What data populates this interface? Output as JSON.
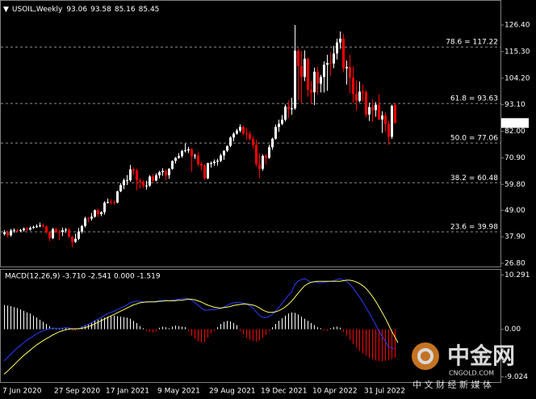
{
  "chart_data": [
    {
      "type": "candlestick",
      "symbol": "USOIL,Weekly",
      "categories": [
        "7 Jun 2020",
        null,
        null,
        null,
        null,
        null,
        null,
        null,
        null,
        null,
        null,
        null,
        null,
        null,
        null,
        null,
        "27 Sep 2020",
        null,
        null,
        null,
        null,
        null,
        null,
        null,
        null,
        null,
        null,
        null,
        null,
        null,
        null,
        null,
        "17 Jan 2021",
        null,
        null,
        null,
        null,
        null,
        null,
        null,
        null,
        null,
        null,
        null,
        null,
        null,
        null,
        null,
        "9 May 2021",
        null,
        null,
        null,
        null,
        null,
        null,
        null,
        null,
        null,
        null,
        null,
        null,
        null,
        null,
        null,
        "29 Aug 2021",
        null,
        null,
        null,
        null,
        null,
        null,
        null,
        null,
        null,
        null,
        null,
        null,
        null,
        null,
        null,
        "19 Dec 2021",
        null,
        null,
        null,
        null,
        null,
        null,
        null,
        null,
        null,
        null,
        null,
        null,
        null,
        null,
        null,
        "10 Apr 2022",
        null,
        null,
        null,
        null,
        null,
        null,
        null,
        null,
        null,
        null,
        null,
        null,
        null,
        null,
        null,
        "31 Jul 2022",
        null,
        null,
        null,
        null,
        null,
        null,
        null,
        null,
        null
      ],
      "open": [
        39.0,
        39.8,
        38.5,
        40.5,
        40.6,
        40.3,
        40.6,
        41.3,
        40.9,
        41.6,
        42.0,
        42.3,
        42.6,
        42.2,
        39.8,
        37.3,
        41.1,
        40.0,
        39.9,
        40.6,
        40.9,
        37.9,
        35.8,
        37.1,
        40.1,
        42.4,
        45.6,
        45.5,
        46.3,
        49.0,
        47.4,
        48.2,
        52.2,
        52.4,
        52.3,
        52.2,
        56.9,
        59.5,
        61.5,
        61.5,
        66.1,
        65.6,
        61.4,
        60.9,
        59.3,
        59.3,
        63.1,
        61.4,
        63.6,
        64.9,
        65.4,
        63.6,
        66.3,
        69.6,
        70.9,
        71.6,
        73.7,
        74.0,
        74.5,
        71.6,
        71.9,
        68.3,
        67.7,
        62.3,
        68.7,
        68.7,
        69.3,
        69.7,
        71.9,
        73.9,
        75.9,
        79.4,
        81.0,
        82.3,
        83.8,
        81.0,
        80.9,
        78.8,
        76.3,
        68.2,
        66.3,
        71.7,
        70.9,
        75.3,
        78.9,
        83.8,
        85.1,
        86.8,
        92.3,
        91.2,
        91.6,
        115.7,
        109.3,
        104.7,
        112.3,
        99.3,
        98.3,
        106.9,
        101.9,
        104.7,
        109.8,
        110.5,
        110.3,
        114.5,
        119.1,
        120.7,
        108.3,
        108.9,
        104.4,
        97.6,
        94.7,
        98.6,
        98.4,
        89.0,
        92.1,
        90.8,
        93.1,
        86.9,
        88.6,
        85.1,
        79.7,
        93.06
      ],
      "high": [
        40.7,
        40.4,
        41.2,
        41.4,
        41.0,
        41.2,
        41.8,
        41.9,
        42.2,
        42.6,
        43.1,
        43.8,
        43.4,
        42.6,
        40.2,
        41.6,
        41.7,
        40.8,
        41.7,
        41.6,
        41.5,
        38.2,
        39.2,
        41.6,
        42.9,
        46.3,
        46.2,
        47.8,
        49.3,
        49.6,
        48.6,
        52.7,
        53.9,
        53.6,
        53.2,
        57.1,
        60.3,
        62.3,
        63.7,
        67.9,
        66.9,
        66.4,
        62.3,
        61.6,
        61.3,
        63.6,
        64.1,
        64.4,
        65.5,
        66.5,
        66.1,
        66.6,
        69.8,
        71.2,
        72.9,
        74.3,
        76.9,
        75.5,
        74.9,
        72.6,
        73.3,
        69.2,
        68.2,
        68.9,
        69.4,
        70.2,
        70.5,
        72.6,
        74.0,
        76.0,
        79.9,
        81.6,
        83.0,
        84.9,
        84.4,
        83.4,
        82.1,
        79.8,
        78.4,
        72.7,
        72.3,
        72.6,
        76.4,
        79.3,
        84.8,
        86.8,
        88.8,
        93.2,
        94.9,
        96.0,
        126.4,
        116.6,
        115.5,
        115.8,
        112.8,
        103.0,
        108.6,
        109.0,
        105.6,
        111.2,
        114.0,
        115.1,
        117.7,
        120.7,
        123.7,
        122.7,
        111.6,
        114.0,
        109.2,
        103.2,
        102.8,
        101.5,
        99.0,
        94.0,
        95.4,
        94.2,
        97.5,
        90.4,
        89.8,
        86.3,
        93.1,
        93.58
      ],
      "low": [
        38.4,
        37.6,
        38.0,
        39.5,
        39.6,
        39.8,
        40.1,
        40.3,
        40.5,
        41.2,
        41.6,
        41.9,
        41.8,
        39.3,
        36.1,
        36.9,
        39.4,
        36.6,
        38.2,
        39.6,
        37.6,
        33.6,
        35.3,
        36.5,
        39.3,
        41.8,
        43.9,
        44.6,
        45.9,
        46.2,
        46.5,
        47.2,
        51.8,
        51.4,
        51.3,
        51.9,
        56.6,
        57.8,
        59.5,
        60.9,
        63.8,
        57.3,
        58.1,
        58.3,
        57.6,
        58.8,
        60.8,
        61.1,
        62.3,
        63.4,
        61.6,
        62.1,
        65.9,
        68.5,
        70.5,
        70.9,
        73.1,
        72.9,
        65.1,
        70.4,
        67.3,
        65.7,
        61.7,
        62.0,
        66.8,
        67.6,
        67.7,
        69.1,
        70.1,
        73.3,
        75.4,
        77.8,
        80.6,
        81.6,
        80.4,
        78.3,
        78.2,
        74.8,
        67.4,
        62.4,
        65.5,
        68.1,
        70.5,
        74.3,
        78.5,
        81.8,
        84.6,
        86.1,
        87.5,
        88.9,
        91.0,
        95.0,
        93.5,
        103.0,
        96.5,
        93.3,
        92.9,
        97.4,
        98.2,
        98.2,
        98.9,
        105.1,
        108.4,
        112.0,
        116.5,
        106.7,
        101.5,
        97.9,
        93.8,
        90.6,
        94.1,
        94.5,
        87.6,
        86.3,
        86.0,
        88.1,
        86.8,
        81.3,
        82.0,
        76.3,
        78.8,
        85.16
      ],
      "close": [
        39.8,
        38.5,
        40.5,
        40.6,
        40.3,
        40.6,
        41.3,
        40.9,
        41.6,
        42.0,
        42.3,
        42.6,
        42.2,
        39.8,
        37.3,
        41.1,
        40.0,
        39.9,
        40.6,
        40.9,
        37.9,
        35.8,
        37.1,
        40.1,
        42.4,
        45.6,
        45.5,
        46.3,
        49.0,
        47.4,
        48.2,
        52.2,
        52.4,
        52.3,
        52.2,
        56.9,
        59.5,
        61.5,
        61.5,
        66.1,
        65.6,
        61.4,
        60.9,
        59.3,
        59.3,
        63.1,
        61.4,
        63.6,
        64.9,
        65.4,
        63.6,
        66.3,
        69.6,
        70.9,
        71.6,
        73.7,
        74.0,
        74.5,
        71.6,
        71.9,
        68.3,
        67.7,
        62.3,
        68.7,
        68.7,
        69.3,
        69.7,
        71.9,
        73.9,
        75.9,
        79.4,
        81.0,
        82.3,
        83.8,
        81.0,
        80.9,
        78.8,
        76.3,
        68.2,
        66.3,
        71.7,
        70.9,
        75.3,
        78.9,
        83.8,
        85.1,
        86.8,
        92.3,
        91.2,
        91.6,
        115.7,
        109.3,
        104.7,
        112.3,
        99.3,
        98.3,
        106.9,
        101.9,
        104.7,
        109.8,
        110.5,
        110.3,
        114.5,
        119.1,
        120.7,
        108.3,
        108.9,
        104.4,
        97.6,
        94.7,
        98.6,
        98.4,
        89.0,
        92.1,
        90.8,
        93.1,
        86.9,
        88.6,
        85.1,
        79.7,
        92.6,
        85.45
      ],
      "bull_color": "#ffffff",
      "bear_color": "#ff0000",
      "ylim": [
        25.46,
        136.19
      ],
      "yticks": [
        {
          "value": 126.4,
          "label": "126.40"
        },
        {
          "value": 115.3,
          "label": "115.30"
        },
        {
          "value": 104.2,
          "label": "104.20"
        },
        {
          "value": 93.1,
          "label": "93.10"
        },
        {
          "value": 82,
          "label": "82.00"
        },
        {
          "value": 70.9,
          "label": "70.90"
        },
        {
          "value": 59.8,
          "label": "59.80"
        },
        {
          "value": 49,
          "label": "49.00"
        },
        {
          "value": 37.9,
          "label": "37.90"
        },
        {
          "value": 26.8,
          "label": "26.80"
        }
      ],
      "fib_color": "#8c8c8c",
      "fib_levels": [
        {
          "value": 117.22,
          "label": "78.6 = 117.22"
        },
        {
          "value": 93.63,
          "label": "61.8 = 93.63"
        },
        {
          "value": 77.06,
          "label": "50.0 = 77.06"
        },
        {
          "value": 60.48,
          "label": "38.2 = 60.48"
        },
        {
          "value": 39.98,
          "label": "23.6 = 39.98"
        }
      ]
    },
    {
      "type": "macd",
      "title": "MACD(12,26,9) -3.710 -2.541 0.000 -1.519",
      "ylim": [
        -10.0,
        11.28
      ],
      "yticks": [
        10.291,
        {
          "value": 0,
          "label": "0.00"
        },
        -9.024
      ],
      "histogram": {
        "pos_color": "#ffffff",
        "neg_color": "#ff0000",
        "values": [
          4.6,
          4.5,
          4.4,
          4.2,
          4.0,
          3.8,
          3.5,
          3.2,
          3.0,
          2.6,
          2.2,
          1.8,
          1.4,
          1.0,
          0.6,
          0.3,
          0.1,
          0.1,
          0.2,
          0.3,
          0.2,
          -0.2,
          -0.3,
          0.2,
          0.5,
          0.8,
          1.0,
          1.3,
          1.6,
          1.8,
          2.0,
          2.2,
          2.4,
          2.5,
          2.6,
          2.5,
          2.4,
          2.3,
          2.2,
          2.0,
          1.6,
          1.2,
          0.6,
          0.2,
          -0.3,
          -0.5,
          -0.6,
          -0.4,
          0.3,
          0.5,
          0.4,
          0.2,
          0.5,
          0.7,
          0.6,
          0.5,
          0.4,
          -0.4,
          -1.2,
          -1.8,
          -2.3,
          -2.5,
          -2.4,
          -1.6,
          -0.8,
          -0.3,
          0.4,
          1.0,
          1.4,
          1.6,
          1.5,
          1.2,
          0.8,
          -0.4,
          -1.0,
          -1.6,
          -2.0,
          -2.2,
          -2.3,
          -2.1,
          -1.6,
          -1.0,
          -0.4,
          0.4,
          1.0,
          1.6,
          2.1,
          2.6,
          3.0,
          3.2,
          3.1,
          2.8,
          2.4,
          2.0,
          1.6,
          1.2,
          0.8,
          0.4,
          0.2,
          -0.2,
          -0.3,
          0.2,
          0.4,
          0.5,
          0.3,
          -0.5,
          -1.2,
          -2.0,
          -2.8,
          -3.5,
          -4.1,
          -4.6,
          -5.0,
          -5.4,
          -5.7,
          -5.9,
          -6.0,
          -6.1,
          -6.0,
          -5.8,
          -5.6,
          -5.4
        ]
      },
      "series": [
        {
          "color": "#2a3cff",
          "values": [
            -6.0,
            -5.4,
            -4.8,
            -4.2,
            -3.6,
            -3.1,
            -2.6,
            -2.1,
            -1.7,
            -1.3,
            -0.9,
            -0.6,
            -0.3,
            -0.1,
            0.1,
            0.2,
            0.2,
            0.2,
            0.2,
            0.3,
            0.3,
            0.1,
            0.0,
            0.1,
            0.3,
            0.6,
            0.9,
            1.2,
            1.6,
            1.9,
            2.2,
            2.6,
            2.9,
            3.2,
            3.4,
            3.7,
            4.0,
            4.3,
            4.6,
            5.0,
            5.2,
            5.3,
            5.3,
            5.2,
            5.1,
            5.2,
            5.2,
            5.3,
            5.4,
            5.5,
            5.5,
            5.4,
            5.5,
            5.6,
            5.7,
            5.8,
            5.9,
            5.8,
            5.5,
            5.1,
            4.6,
            4.1,
            3.6,
            3.6,
            3.7,
            3.7,
            3.8,
            4.0,
            4.2,
            4.5,
            4.8,
            5.0,
            5.1,
            5.1,
            5.0,
            4.8,
            4.5,
            4.1,
            3.4,
            2.7,
            2.3,
            2.2,
            2.4,
            2.8,
            3.4,
            4.1,
            4.8,
            5.6,
            6.4,
            7.0,
            8.4,
            9.1,
            9.4,
            9.6,
            9.3,
            8.9,
            9.0,
            8.9,
            8.8,
            8.9,
            9.0,
            9.1,
            9.2,
            9.4,
            9.6,
            9.4,
            9.1,
            8.6,
            7.9,
            7.0,
            6.2,
            5.3,
            4.2,
            3.2,
            2.1,
            1.0,
            -0.2,
            -1.2,
            -2.2,
            -3.3,
            -3.5,
            -3.71
          ]
        },
        {
          "color": "#ffff66",
          "values": [
            -8.5,
            -8.0,
            -7.4,
            -6.8,
            -6.2,
            -5.6,
            -5.0,
            -4.5,
            -4.0,
            -3.5,
            -3.0,
            -2.6,
            -2.2,
            -1.8,
            -1.5,
            -1.1,
            -0.8,
            -0.5,
            -0.3,
            -0.1,
            0.0,
            0.1,
            0.1,
            0.1,
            0.2,
            0.3,
            0.5,
            0.7,
            1.0,
            1.3,
            1.6,
            1.9,
            2.2,
            2.5,
            2.8,
            3.1,
            3.4,
            3.7,
            4.0,
            4.3,
            4.6,
            4.8,
            5.0,
            5.1,
            5.2,
            5.2,
            5.2,
            5.2,
            5.3,
            5.3,
            5.4,
            5.4,
            5.4,
            5.4,
            5.5,
            5.5,
            5.6,
            5.7,
            5.7,
            5.6,
            5.4,
            5.2,
            4.9,
            4.6,
            4.4,
            4.2,
            4.1,
            4.0,
            4.1,
            4.2,
            4.3,
            4.5,
            4.6,
            4.7,
            4.8,
            4.8,
            4.7,
            4.6,
            4.4,
            4.1,
            3.7,
            3.4,
            3.2,
            3.2,
            3.3,
            3.5,
            3.8,
            4.2,
            4.7,
            5.3,
            6.0,
            6.8,
            7.5,
            8.2,
            8.6,
            8.9,
            9.0,
            9.1,
            9.1,
            9.1,
            9.1,
            9.1,
            9.1,
            9.1,
            9.1,
            9.2,
            9.3,
            9.3,
            9.2,
            9.0,
            8.7,
            8.3,
            7.8,
            7.1,
            6.3,
            5.4,
            4.4,
            3.3,
            2.2,
            1.0,
            -0.3,
            -1.4,
            -2.541
          ]
        }
      ]
    }
  ],
  "watermark": {
    "logo": "中金网",
    "site": "CNGOLD.COM",
    "tagline": "中 文 财 经 新 媒 体"
  }
}
